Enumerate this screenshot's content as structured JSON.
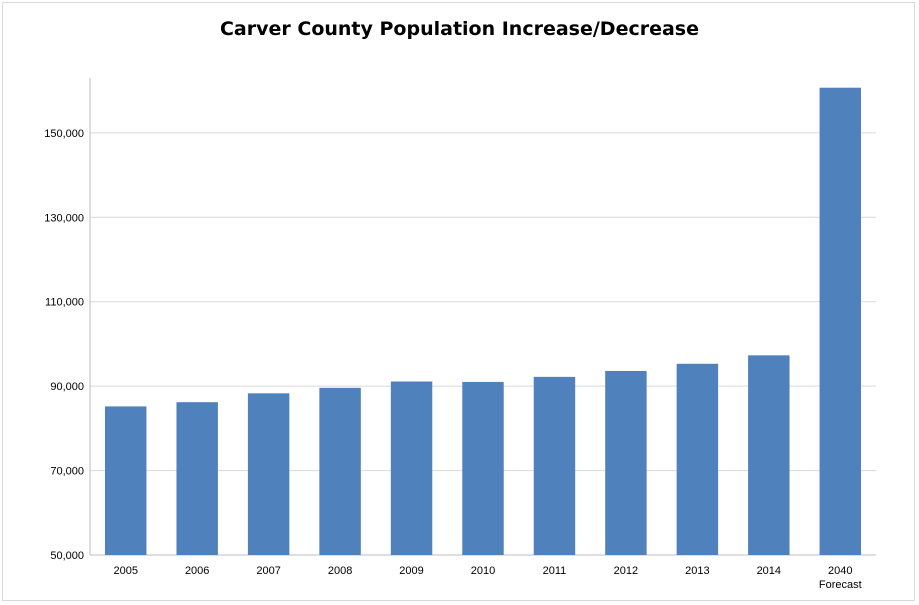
{
  "chart_data": {
    "type": "bar",
    "title": "Carver County Population Increase/Decrease",
    "categories": [
      "2005",
      "2006",
      "2007",
      "2008",
      "2009",
      "2010",
      "2011",
      "2012",
      "2013",
      "2014",
      "2040"
    ],
    "category_sublabels": [
      "",
      "",
      "",
      "",
      "",
      "",
      "",
      "",
      "",
      "",
      "Forecast"
    ],
    "values": [
      85200,
      86200,
      88300,
      89600,
      91100,
      91000,
      92200,
      93600,
      95300,
      97300,
      160700
    ],
    "xlabel": "",
    "ylabel": "",
    "ylim": [
      50000,
      163000
    ],
    "yticks": [
      50000,
      70000,
      90000,
      110000,
      130000,
      150000
    ],
    "ytick_labels": [
      "50,000",
      "70,000",
      "90,000",
      "110,000",
      "130,000",
      "150,000"
    ],
    "grid": true,
    "legend": false,
    "bar_color": "#4f81bd",
    "grid_color": "#d9d9d9"
  }
}
